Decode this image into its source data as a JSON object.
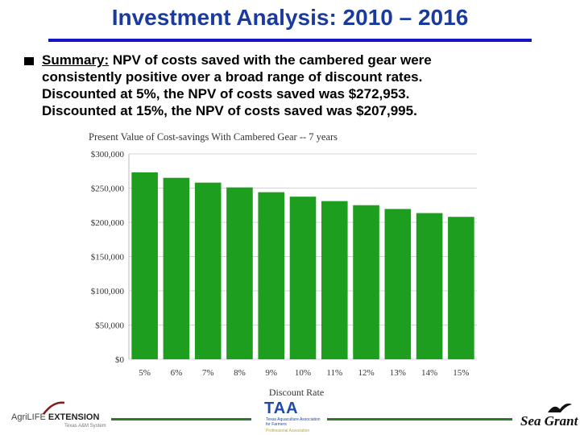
{
  "slide": {
    "title": "Investment  Analysis: 2010 – 2016",
    "summary_label": "Summary:",
    "summary_line1": " NPV of costs saved with the cambered gear were",
    "summary_line2": "consistently positive over a broad range of discount rates.",
    "summary_line3": "Discounted at 5%, the NPV of costs saved was $272,953.",
    "summary_line4": "Discounted at 15%, the NPV of costs saved was $207,995.",
    "accent_color": "#1515c8",
    "title_color": "#1a3a9e"
  },
  "chart_data": {
    "type": "bar",
    "title": "Present Value of Cost-savings With Cambered Gear -- 7 years",
    "xlabel": "Discount Rate",
    "ylabel": "",
    "categories": [
      "5%",
      "6%",
      "7%",
      "8%",
      "9%",
      "10%",
      "11%",
      "12%",
      "13%",
      "14%",
      "15%"
    ],
    "values": [
      272953,
      265000,
      258000,
      251000,
      244000,
      237500,
      231000,
      225000,
      219500,
      213500,
      207995
    ],
    "ylim": [
      0,
      300000
    ],
    "yticks": [
      0,
      50000,
      100000,
      150000,
      200000,
      250000,
      300000
    ],
    "ytick_labels": [
      "$0",
      "$50,000",
      "$100,000",
      "$150,000",
      "$200,000",
      "$250,000",
      "$300,000"
    ],
    "bar_color": "#1e9e1e",
    "grid": true
  },
  "footer": {
    "agri_prefix": "AgriLIFE",
    "agri_suffix": " EXTENSION",
    "agri_sub": "Texas A&M System",
    "taa_mark": "TAA",
    "taa_sub": "Texas Aquaculture Association for Farmers",
    "taa_sub2": "Professional Association",
    "sea_grant": "Sea Grant",
    "rule_color": "#2d7a2d"
  }
}
